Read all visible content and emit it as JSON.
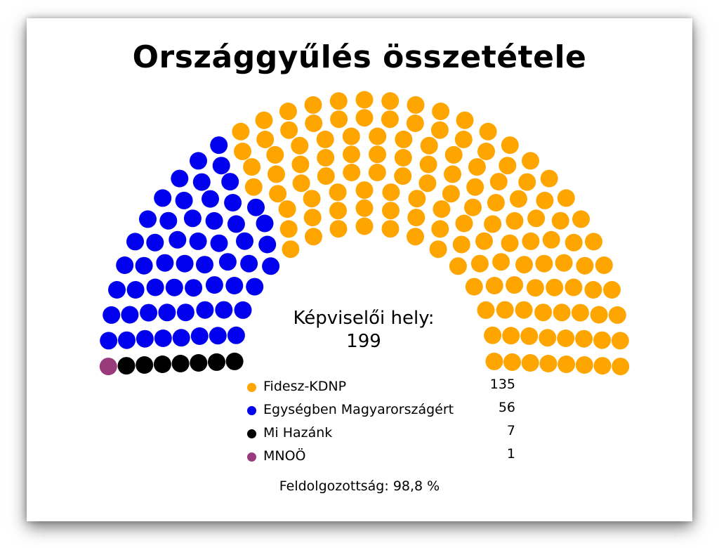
{
  "title": "Országgyűlés összetétele",
  "seats_label": "Képviselői hely:",
  "total_seats": "199",
  "progress_text": "Feldolgozottság: 98,8 %",
  "chart_data": {
    "type": "parliament",
    "title": "Országgyűlés összetétele",
    "total": 199,
    "series": [
      {
        "name": "MNOÖ",
        "value": 1,
        "color": "#993a7c"
      },
      {
        "name": "Mi Hazánk",
        "value": 7,
        "color": "#000000"
      },
      {
        "name": "Egységben Magyarországért",
        "value": 56,
        "color": "#0000ee"
      },
      {
        "name": "Fidesz-KDNP",
        "value": 135,
        "color": "#ffa500"
      }
    ]
  },
  "legend": [
    {
      "name": "Fidesz-KDNP",
      "count": "135",
      "color": "#ffa500"
    },
    {
      "name": "Egységben Magyarországért",
      "count": "56",
      "color": "#0000ee"
    },
    {
      "name": "Mi Hazánk",
      "count": "7",
      "color": "#000000"
    },
    {
      "name": "MNOÖ",
      "count": "1",
      "color": "#993a7c"
    }
  ]
}
